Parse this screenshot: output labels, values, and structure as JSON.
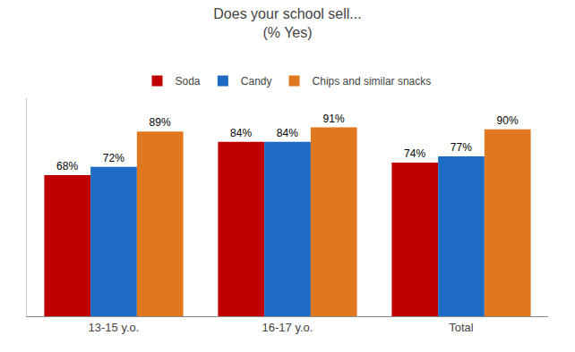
{
  "chart_data": {
    "type": "bar",
    "title": "Does your school sell...",
    "subtitle": "(% Yes)",
    "categories": [
      "13-15 y.o.",
      "16-17 y.o.",
      "Total"
    ],
    "series": [
      {
        "name": "Soda",
        "color": "#C00000",
        "values": [
          68,
          84,
          74
        ],
        "value_labels": [
          "68%",
          "84%",
          "74%"
        ]
      },
      {
        "name": "Candy",
        "color": "#1F6BC4",
        "values": [
          72,
          84,
          77
        ],
        "value_labels": [
          "72%",
          "84%",
          "77%"
        ]
      },
      {
        "name": "Chips and similar snacks",
        "color": "#E07820",
        "values": [
          89,
          91,
          90
        ],
        "value_labels": [
          "89%",
          "91%",
          "90%"
        ]
      }
    ],
    "ylim": [
      0,
      105
    ],
    "grid": false,
    "legend": "top",
    "data_labels": true,
    "tick_labels": "x"
  }
}
